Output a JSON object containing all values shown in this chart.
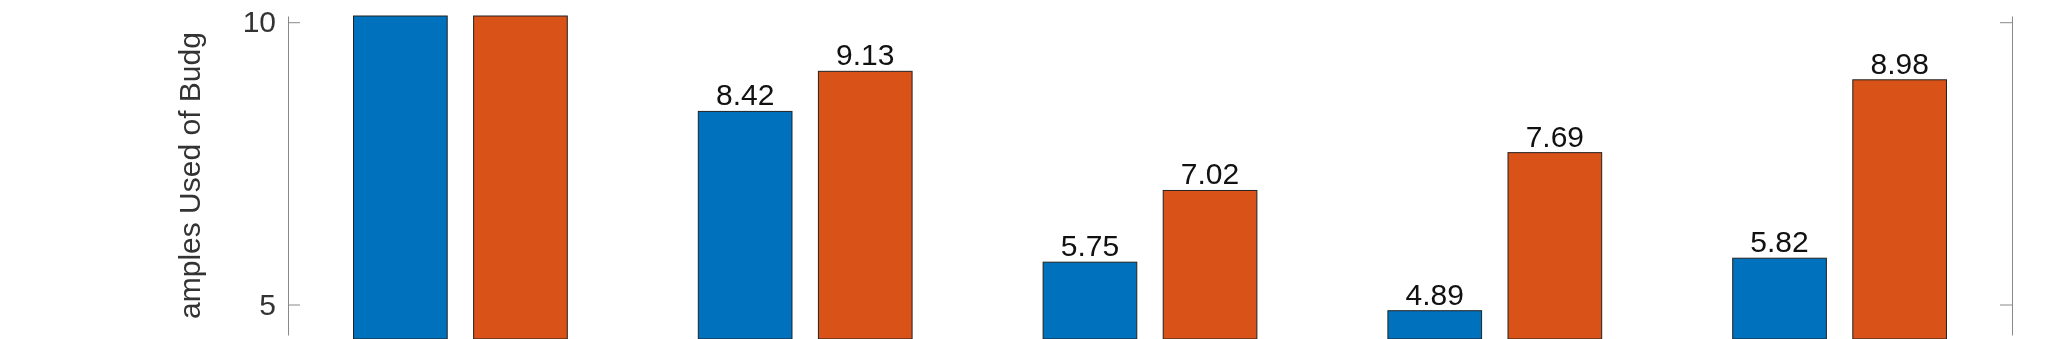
{
  "chart_data": {
    "type": "bar",
    "ylabel": "amples Used of Budg",
    "categories": [
      null,
      null,
      null,
      null,
      null
    ],
    "series": [
      {
        "color": "#0072bd",
        "values": [
          10.11,
          8.42,
          5.75,
          4.89,
          5.82
        ],
        "value_labels": [
          null,
          "8.42",
          "5.75",
          "4.89",
          "5.82"
        ]
      },
      {
        "color": "#d95319",
        "values": [
          10.11,
          9.13,
          7.02,
          7.69,
          8.98
        ],
        "value_labels": [
          null,
          "9.13",
          "7.02",
          "7.69",
          "8.98"
        ]
      }
    ],
    "ylim": [
      4.46,
      10.11
    ],
    "yticks": [
      5,
      10
    ]
  }
}
